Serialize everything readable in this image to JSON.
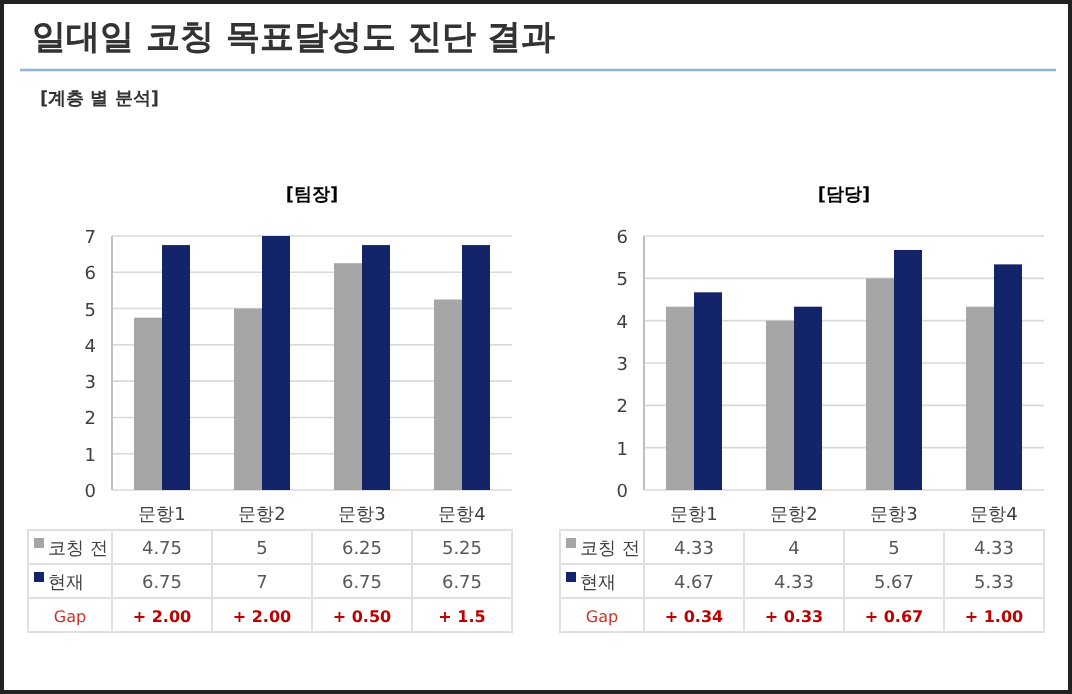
{
  "chart_data": [
    {
      "type": "bar",
      "title": "[팀장]",
      "categories": [
        "문항1",
        "문항2",
        "문항3",
        "문항4"
      ],
      "series": [
        {
          "name": "코칭 전",
          "color": "#a6a6a6",
          "values": [
            4.75,
            5,
            6.25,
            5.25
          ]
        },
        {
          "name": "현재",
          "color": "#14246b",
          "values": [
            6.75,
            7,
            6.75,
            6.75
          ]
        }
      ],
      "ylim": [
        0,
        7
      ],
      "yticks": [
        0,
        1,
        2,
        3,
        4,
        5,
        6,
        7
      ],
      "grid": "y",
      "legend": "bottom",
      "data_labels": true,
      "annotations": [
        "일대일 코칭 목표달성도 진단 결과",
        "[계층 별 분석]",
        "Gap",
        "+ 2.00",
        "+ 2.00",
        "+ 0.50",
        "+ 1.5"
      ]
    },
    {
      "type": "bar",
      "title": "[담당]",
      "categories": [
        "문항1",
        "문항2",
        "문항3",
        "문항4"
      ],
      "series": [
        {
          "name": "코칭 전",
          "color": "#a6a6a6",
          "values": [
            4.33,
            4,
            5,
            4.33
          ]
        },
        {
          "name": "현재",
          "color": "#14246b",
          "values": [
            4.67,
            4.33,
            5.67,
            5.33
          ]
        }
      ],
      "ylim": [
        0,
        6
      ],
      "yticks": [
        0,
        1,
        2,
        3,
        4,
        5,
        6
      ],
      "grid": "y",
      "legend": "bottom",
      "data_labels": true,
      "annotations": [
        "Gap",
        "+ 0.34",
        "+ 0.33",
        "+ 0.67",
        "+ 1.00"
      ]
    }
  ]
}
